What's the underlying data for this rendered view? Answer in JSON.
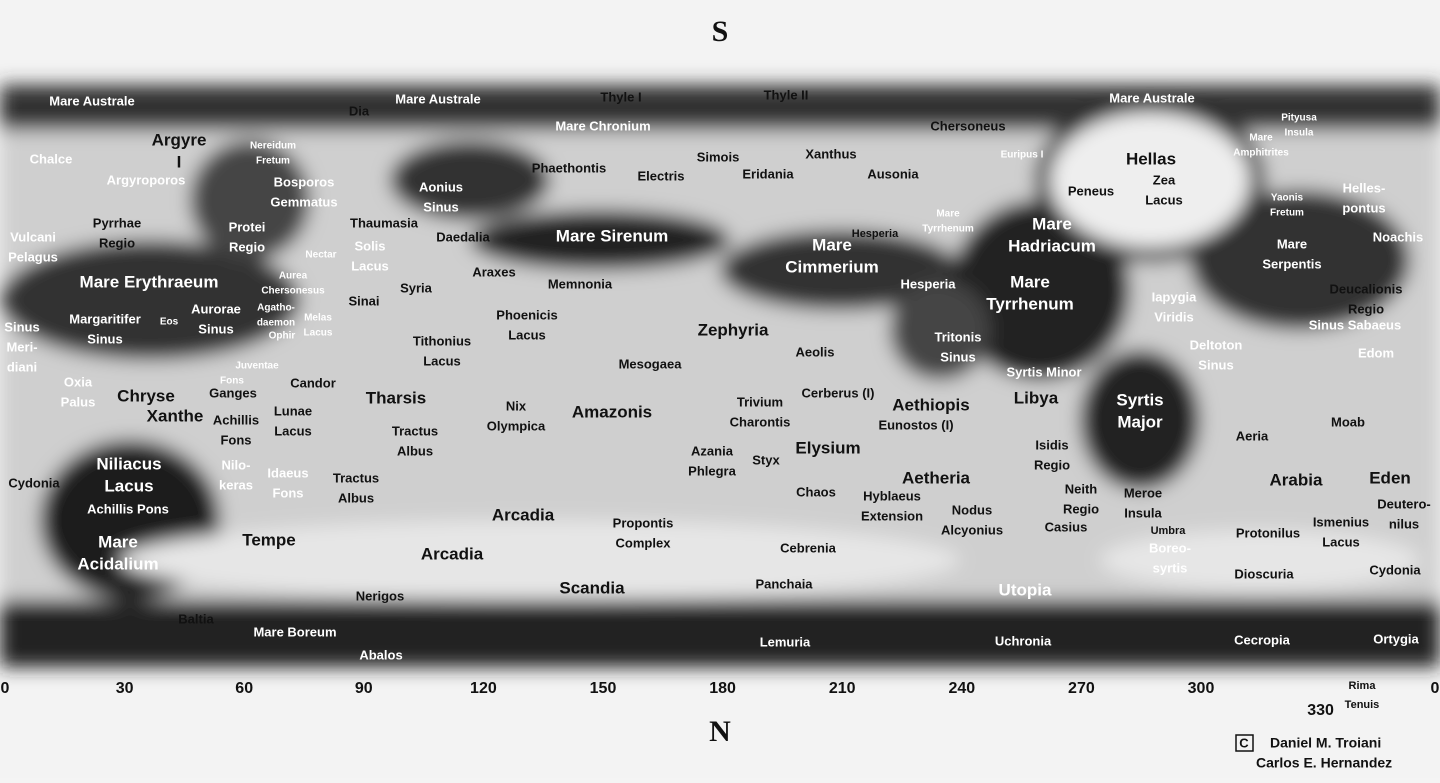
{
  "header": {
    "south": "S"
  },
  "footer": {
    "north": "N"
  },
  "longitudes": [
    0,
    30,
    60,
    90,
    120,
    150,
    180,
    210,
    240,
    270,
    300,
    330,
    0
  ],
  "credits": {
    "mark": "C",
    "name": "Daniel M. Troiani",
    "coauthor": "Carlos E. Hernandez"
  },
  "labels": [
    [
      "Mare Australe"
    ],
    [
      "Dia"
    ],
    [
      "Mare Australe"
    ],
    [
      "Thyle I"
    ],
    [
      "Thyle II"
    ],
    [
      "Mare Chronium"
    ],
    [
      "Mare Australe"
    ],
    [
      "Chersoneus"
    ],
    [
      "Pityusa",
      "Insula"
    ],
    [
      "Argyre",
      "I"
    ],
    [
      "Chalce"
    ],
    [
      "Nereidum",
      "Fretum"
    ],
    [
      "Bosporos",
      "Gemmatus"
    ],
    [
      "Argyroporos"
    ],
    [
      "Aonius",
      "Sinus"
    ],
    [
      "Phaethontis"
    ],
    [
      "Electris"
    ],
    [
      "Simois"
    ],
    [
      "Eridania"
    ],
    [
      "Xanthus"
    ],
    [
      "Ausonia"
    ],
    [
      "Euripus I"
    ],
    [
      "Hellas"
    ],
    [
      "Zea",
      "Lacus"
    ],
    [
      "Peneus"
    ],
    [
      "Mare",
      "Amphitrites"
    ],
    [
      "Helles-",
      "pontus"
    ],
    [
      "Yaonis",
      "Fretum"
    ],
    [
      "Vulcani",
      "Pelagus"
    ],
    [
      "Pyrrhae",
      "Regio"
    ],
    [
      "Protei",
      "Regio"
    ],
    [
      "Thaumasia"
    ],
    [
      "Solis",
      "Lacus"
    ],
    [
      "Daedalia"
    ],
    [
      "Mare Sirenum"
    ],
    [
      "Mare",
      "Cimmerium"
    ],
    [
      "Hesperia"
    ],
    [
      "Mare",
      "Tyrrhenum"
    ],
    [
      "Mare",
      "Hadriacum"
    ],
    [
      "Mare",
      "Serpentis"
    ],
    [
      "Noachis"
    ],
    [
      "Nectar"
    ],
    [
      "Mare Erythraeum"
    ],
    [
      "Aurea",
      "Cherso­nesus"
    ],
    [
      "Syria"
    ],
    [
      "Araxes"
    ],
    [
      "Memnonia"
    ],
    [
      "Hesperia"
    ],
    [
      "Mare",
      "Tyrrhenum"
    ],
    [
      "Iapygia",
      "Viridis"
    ],
    [
      "Deucalionis",
      "Regio"
    ],
    [
      "Sinai"
    ],
    [
      "Sinus",
      "Meri-",
      "diani"
    ],
    [
      "Margaritifer",
      "Sinus"
    ],
    [
      "Eos"
    ],
    [
      "Aurorae",
      "Sinus"
    ],
    [
      "Agatho-",
      "daemon"
    ],
    [
      "Ophir"
    ],
    [
      "Melas",
      "Lacus"
    ],
    [
      "Phoenicis",
      "Lacus"
    ],
    [
      "Tithonius",
      "Lacus"
    ],
    [
      "Zephyria"
    ],
    [
      "Aeolis"
    ],
    [
      "Tritonis",
      "Sinus"
    ],
    [
      "Sinus Sabaeus"
    ],
    [
      "Deltoton",
      "Sinus"
    ],
    [
      "Edom"
    ],
    [
      "Mesogaea"
    ],
    [
      "Syrtis Minor"
    ],
    [
      "Juventae"
    ],
    [
      "Fons"
    ],
    [
      "Candor"
    ],
    [
      "Oxia",
      "Palus"
    ],
    [
      "Chryse"
    ],
    [
      "Ganges"
    ],
    [
      "Tharsis"
    ],
    [
      "Nix",
      "Olympica"
    ],
    [
      "Amazonis"
    ],
    [
      "Trivium",
      "Charontis"
    ],
    [
      "Cerberus (I)"
    ],
    [
      "Aethiopis"
    ],
    [
      "Eunostos (I)"
    ],
    [
      "Libya"
    ],
    [
      "Syrtis",
      "Major"
    ],
    [
      "Aeria"
    ],
    [
      "Moab"
    ],
    [
      "Xanthe"
    ],
    [
      "Achillis",
      "Fons"
    ],
    [
      "Lunae",
      "Lacus"
    ],
    [
      "Tractus",
      "Albus"
    ],
    [
      "Azania",
      "Phlegra"
    ],
    [
      "Styx"
    ],
    [
      "Elysium"
    ],
    [
      "Isidis",
      "Regio"
    ],
    [
      "Niliacus",
      "Lacus"
    ],
    [
      "Nilo-",
      "keras"
    ],
    [
      "Idaeus",
      "Fons"
    ],
    [
      "Tractus",
      "Albus"
    ],
    [
      "Aetheria"
    ],
    [
      "Cydonia"
    ],
    [
      "Arabia"
    ],
    [
      "Eden"
    ],
    [
      "Deutero-",
      "nilus"
    ],
    [
      "Achillis Pons"
    ],
    [
      "Chaos"
    ],
    [
      "Hyblaeus",
      "Extension"
    ],
    [
      "Neith",
      "Regio"
    ],
    [
      "Meroe",
      "Insula"
    ],
    [
      "Arcadia"
    ],
    [
      "Propontis",
      "Complex"
    ],
    [
      "Nodus",
      "Alcyonius"
    ],
    [
      "Casius"
    ],
    [
      "Umbra"
    ],
    [
      "Protonilus"
    ],
    [
      "Ismenius",
      "Lacus"
    ],
    [
      "Mare",
      "Acidalium"
    ],
    [
      "Tempe"
    ],
    [
      "Cebrenia"
    ],
    [
      "Boreo-",
      "syrtis"
    ],
    [
      "Arcadia"
    ],
    [
      "Dioscuria"
    ],
    [
      "Cydonia"
    ],
    [
      "Scandia"
    ],
    [
      "Panchaia"
    ],
    [
      "Utopia"
    ],
    [
      "Nerigos"
    ],
    [
      "Baltia"
    ],
    [
      "Mare Boreum"
    ],
    [
      "Lemuria"
    ],
    [
      "Uchronia"
    ],
    [
      "Cecropia"
    ],
    [
      "Ortygia"
    ],
    [
      "Abalos"
    ],
    [
      "Rima",
      "Tenuis"
    ]
  ]
}
